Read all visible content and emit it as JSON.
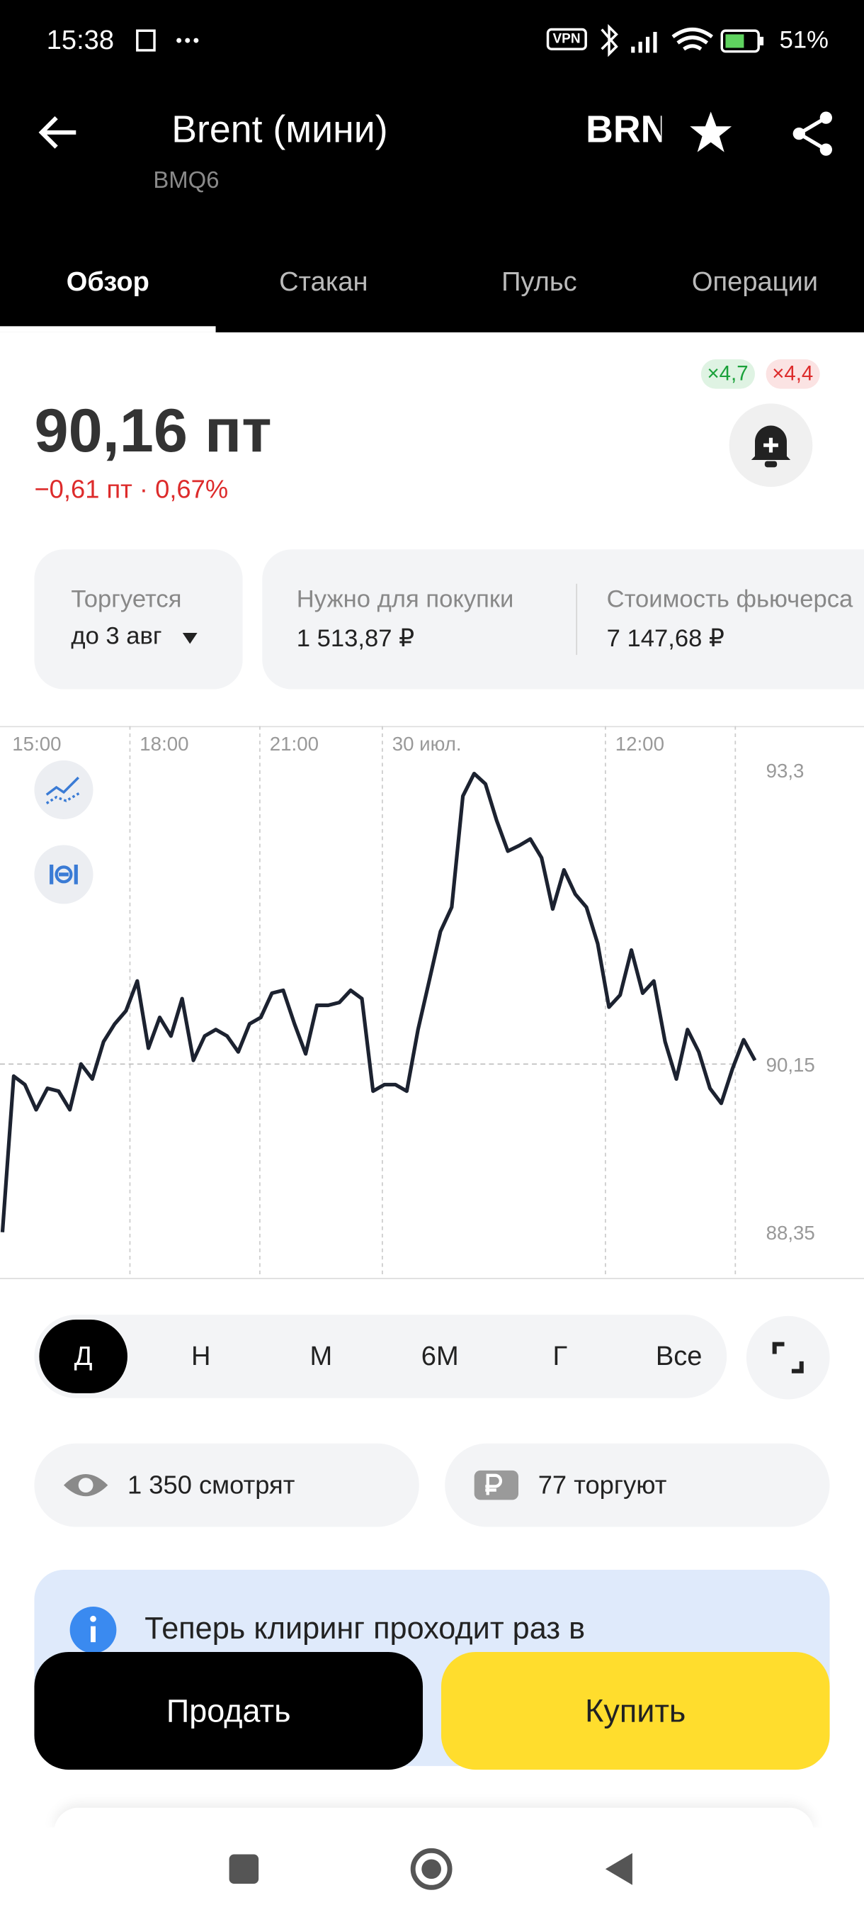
{
  "status_bar": {
    "time": "15:38",
    "vpn": "VPN",
    "battery": "51%"
  },
  "header": {
    "title": "Brent (мини)",
    "ticker": "BRN",
    "code": "BMQ6"
  },
  "tabs": [
    "Обзор",
    "Стакан",
    "Пульс",
    "Операции"
  ],
  "badges": [
    "×4,7",
    "×4,4"
  ],
  "quote": {
    "price": "90,16 пт",
    "change": "−0,61 пт · 0,67%"
  },
  "cards": [
    {
      "label": "Торгуется",
      "value": "до 3 авг"
    },
    {
      "label": "Нужно для покупки",
      "value": "1 513,87 ₽"
    },
    {
      "label": "Стоимость фьючерса",
      "value": "7 147,68 ₽"
    }
  ],
  "chart_data": {
    "type": "line",
    "color": "#1c2230",
    "values": [
      88.35,
      90.02,
      89.93,
      89.66,
      89.89,
      89.86,
      89.66,
      90.15,
      89.99,
      90.39,
      90.58,
      90.72,
      91.04,
      90.32,
      90.65,
      90.45,
      90.85,
      90.19,
      90.45,
      90.52,
      90.45,
      90.28,
      90.58,
      90.65,
      90.91,
      90.94,
      90.58,
      90.26,
      90.78,
      90.78,
      90.81,
      90.94,
      90.85,
      89.86,
      89.93,
      89.93,
      89.86,
      90.52,
      91.04,
      91.57,
      91.83,
      93.02,
      93.26,
      93.15,
      92.76,
      92.43,
      92.49,
      92.56,
      92.36,
      91.81,
      92.23,
      91.97,
      91.83,
      91.44,
      90.76,
      90.89,
      91.37,
      90.91,
      91.04,
      90.39,
      89.99,
      90.52,
      90.28,
      89.89,
      89.73,
      90.1,
      90.41,
      90.19
    ],
    "xlim": [
      0,
      68
    ],
    "xticks": [
      {
        "value": 0,
        "label": "15:00"
      },
      {
        "value": 11.52,
        "label": "18:00"
      },
      {
        "value": 23.26,
        "label": "21:00"
      },
      {
        "value": 34.33,
        "label": "30 июл."
      },
      {
        "value": 54.49,
        "label": "12:00"
      }
    ],
    "ylim": [
      87.86,
      93.77
    ],
    "yticks": [
      {
        "value": 93.3,
        "label": "93,3"
      },
      {
        "value": 90.15,
        "label": "90,15"
      },
      {
        "value": 88.35,
        "label": "88,35"
      }
    ],
    "price_line": 90.15
  },
  "periods": [
    "Д",
    "Н",
    "М",
    "6М",
    "Г",
    "Все"
  ],
  "stats": [
    "1 350 смотрят",
    "77 торгуют"
  ],
  "info": "Теперь клиринг проходит раз в",
  "buttons": [
    "Продать",
    "Купить"
  ]
}
